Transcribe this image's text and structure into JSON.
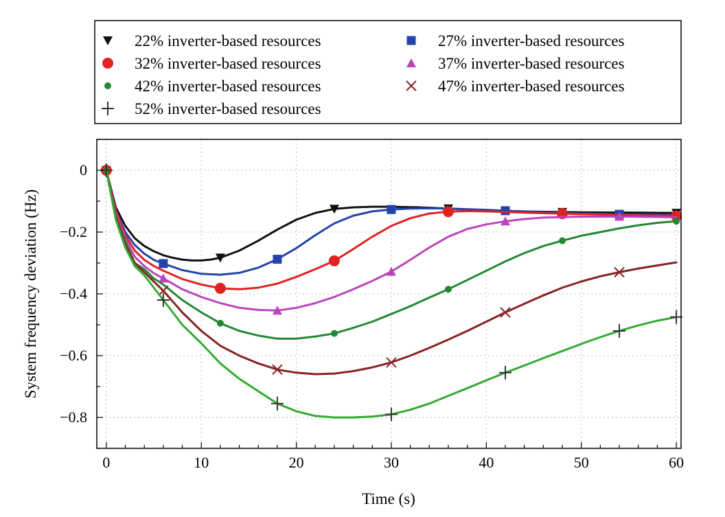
{
  "chart_data": {
    "type": "line",
    "title": "",
    "xlabel": "Time (s)",
    "ylabel": "System frequency deviation (Hz)",
    "xlim": [
      -1,
      60.5
    ],
    "ylim": [
      -0.9,
      0.1
    ],
    "xticks": [
      0,
      10,
      20,
      30,
      40,
      50,
      60
    ],
    "yticks": [
      0,
      -0.2,
      -0.4,
      -0.6,
      -0.8
    ],
    "ytick_labels": [
      "0",
      "−0.2",
      "−0.4",
      "−0.6",
      "−0.8"
    ],
    "grid": true,
    "legend_position": "top",
    "series": [
      {
        "name": "22% inverter-based resources",
        "color": "#111111",
        "marker": "triangle-down",
        "x": [
          0,
          1,
          2,
          3,
          4,
          5,
          6,
          7,
          8,
          9,
          10,
          11,
          12,
          14,
          16,
          18,
          20,
          22,
          24,
          26,
          28,
          30,
          33,
          36,
          40,
          45,
          50,
          55,
          60
        ],
        "y": [
          0,
          -0.12,
          -0.18,
          -0.22,
          -0.245,
          -0.262,
          -0.275,
          -0.283,
          -0.289,
          -0.292,
          -0.292,
          -0.289,
          -0.283,
          -0.26,
          -0.228,
          -0.192,
          -0.16,
          -0.138,
          -0.125,
          -0.12,
          -0.118,
          -0.118,
          -0.12,
          -0.124,
          -0.13,
          -0.134,
          -0.136,
          -0.137,
          -0.138
        ],
        "marker_x": [
          0,
          12,
          24,
          36,
          48,
          60
        ]
      },
      {
        "name": "27% inverter-based resources",
        "color": "#2244aa",
        "marker": "square",
        "x": [
          0,
          1,
          2,
          3,
          4,
          5,
          6,
          8,
          10,
          12,
          14,
          16,
          18,
          20,
          22,
          24,
          26,
          28,
          30,
          32,
          34,
          36,
          40,
          45,
          50,
          55,
          60
        ],
        "y": [
          0,
          -0.13,
          -0.2,
          -0.242,
          -0.27,
          -0.29,
          -0.302,
          -0.323,
          -0.335,
          -0.338,
          -0.332,
          -0.315,
          -0.288,
          -0.252,
          -0.21,
          -0.172,
          -0.147,
          -0.133,
          -0.127,
          -0.124,
          -0.123,
          -0.124,
          -0.128,
          -0.135,
          -0.14,
          -0.143,
          -0.145
        ],
        "marker_x": [
          6,
          18,
          30,
          42,
          54
        ]
      },
      {
        "name": "32% inverter-based resources",
        "color": "#e02222",
        "marker": "circle",
        "x": [
          0,
          1,
          2,
          3,
          4,
          5,
          6,
          8,
          10,
          12,
          14,
          16,
          18,
          20,
          22,
          24,
          26,
          28,
          30,
          32,
          34,
          36,
          38,
          40,
          45,
          50,
          55,
          60
        ],
        "y": [
          0,
          -0.13,
          -0.21,
          -0.26,
          -0.29,
          -0.31,
          -0.325,
          -0.352,
          -0.37,
          -0.382,
          -0.385,
          -0.38,
          -0.367,
          -0.345,
          -0.32,
          -0.293,
          -0.255,
          -0.215,
          -0.18,
          -0.155,
          -0.14,
          -0.134,
          -0.132,
          -0.133,
          -0.138,
          -0.142,
          -0.145,
          -0.148
        ],
        "marker_x": [
          0,
          12,
          24,
          36,
          48,
          60
        ]
      },
      {
        "name": "37% inverter-based resources",
        "color": "#bb44bb",
        "marker": "triangle-up",
        "x": [
          0,
          1,
          2,
          3,
          4,
          5,
          6,
          8,
          10,
          12,
          14,
          16,
          18,
          20,
          22,
          24,
          26,
          28,
          30,
          32,
          34,
          36,
          38,
          40,
          42,
          44,
          46,
          50,
          55,
          60
        ],
        "y": [
          0,
          -0.14,
          -0.22,
          -0.28,
          -0.31,
          -0.333,
          -0.35,
          -0.385,
          -0.41,
          -0.43,
          -0.445,
          -0.452,
          -0.454,
          -0.445,
          -0.43,
          -0.41,
          -0.385,
          -0.358,
          -0.328,
          -0.29,
          -0.25,
          -0.215,
          -0.19,
          -0.175,
          -0.165,
          -0.158,
          -0.153,
          -0.15,
          -0.15,
          -0.152
        ],
        "marker_x": [
          6,
          18,
          30,
          42,
          54
        ]
      },
      {
        "name": "42% inverter-based resources",
        "color": "#228833",
        "marker": "small-circle",
        "x": [
          0,
          1,
          2,
          3,
          4,
          5,
          6,
          8,
          10,
          12,
          14,
          16,
          18,
          20,
          22,
          24,
          26,
          28,
          30,
          32,
          34,
          36,
          38,
          40,
          42,
          44,
          46,
          48,
          50,
          52,
          54,
          56,
          58,
          60
        ],
        "y": [
          0,
          -0.15,
          -0.23,
          -0.3,
          -0.32,
          -0.35,
          -0.37,
          -0.42,
          -0.46,
          -0.495,
          -0.52,
          -0.535,
          -0.545,
          -0.545,
          -0.538,
          -0.528,
          -0.51,
          -0.49,
          -0.465,
          -0.44,
          -0.412,
          -0.385,
          -0.355,
          -0.325,
          -0.295,
          -0.268,
          -0.245,
          -0.228,
          -0.212,
          -0.2,
          -0.188,
          -0.178,
          -0.17,
          -0.165
        ],
        "marker_x": [
          0,
          12,
          24,
          36,
          48,
          60
        ]
      },
      {
        "name": "47% inverter-based resources",
        "color": "#882222",
        "marker": "x",
        "x": [
          0,
          1,
          2,
          3,
          4,
          5,
          6,
          8,
          10,
          12,
          14,
          16,
          18,
          20,
          22,
          24,
          26,
          28,
          30,
          32,
          34,
          36,
          38,
          40,
          42,
          44,
          46,
          48,
          50,
          52,
          54,
          56,
          58,
          60
        ],
        "y": [
          0,
          -0.15,
          -0.24,
          -0.3,
          -0.33,
          -0.36,
          -0.39,
          -0.46,
          -0.52,
          -0.568,
          -0.6,
          -0.625,
          -0.645,
          -0.655,
          -0.66,
          -0.658,
          -0.65,
          -0.638,
          -0.622,
          -0.6,
          -0.575,
          -0.548,
          -0.52,
          -0.49,
          -0.46,
          -0.432,
          -0.405,
          -0.38,
          -0.36,
          -0.343,
          -0.33,
          -0.318,
          -0.308,
          -0.298
        ],
        "marker_x": [
          6,
          18,
          30,
          42,
          54
        ]
      },
      {
        "name": "52% inverter-based resources",
        "color": "#33aa33",
        "marker": "plus",
        "x": [
          0,
          1,
          2,
          3,
          4,
          5,
          6,
          8,
          10,
          12,
          14,
          16,
          18,
          20,
          22,
          24,
          26,
          28,
          30,
          32,
          34,
          36,
          38,
          40,
          42,
          44,
          46,
          48,
          50,
          52,
          54,
          56,
          58,
          60
        ],
        "y": [
          0,
          -0.16,
          -0.25,
          -0.31,
          -0.34,
          -0.38,
          -0.42,
          -0.5,
          -0.56,
          -0.625,
          -0.675,
          -0.715,
          -0.755,
          -0.78,
          -0.795,
          -0.8,
          -0.8,
          -0.797,
          -0.79,
          -0.775,
          -0.755,
          -0.73,
          -0.705,
          -0.68,
          -0.655,
          -0.632,
          -0.608,
          -0.585,
          -0.562,
          -0.54,
          -0.52,
          -0.502,
          -0.487,
          -0.475
        ],
        "marker_x": [
          0,
          6,
          18,
          30,
          42,
          54,
          60
        ]
      }
    ]
  }
}
